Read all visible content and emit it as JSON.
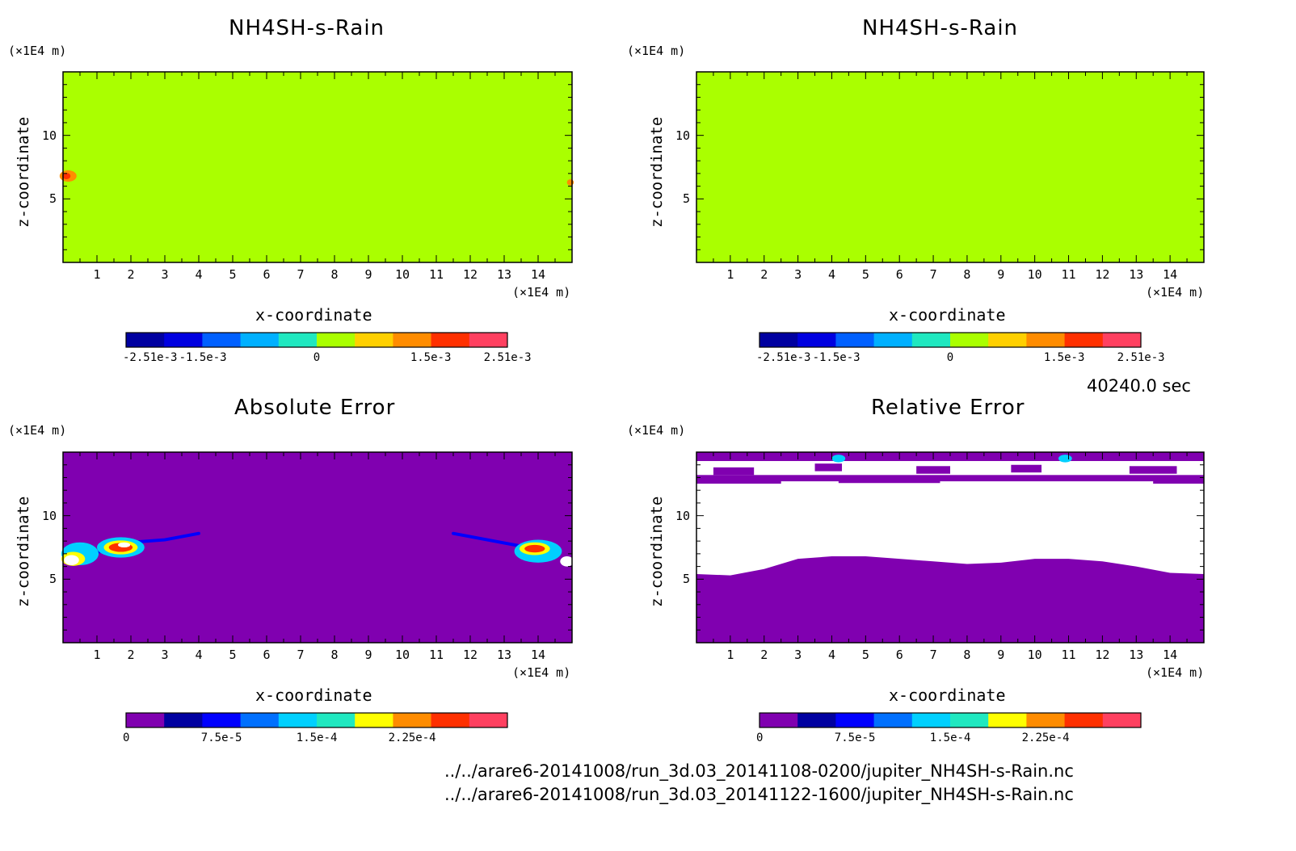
{
  "chart_data": [
    {
      "type": "heatmap",
      "title": "NH4SH-s-Rain",
      "xlabel": "x-coordinate",
      "ylabel": "z-coordinate",
      "x_unit": "(×1E4 m)",
      "y_unit": "(×1E4 m)",
      "xlim": [
        0,
        15
      ],
      "ylim": [
        0,
        15
      ],
      "x_ticks": [
        "1",
        "2",
        "3",
        "4",
        "5",
        "6",
        "7",
        "8",
        "9",
        "10",
        "11",
        "12",
        "13",
        "14"
      ],
      "y_ticks": [
        "5",
        "10"
      ],
      "background": "#aaff00",
      "colorbar": {
        "ticks": [
          "-2.51e-3",
          "-1.5e-3",
          "0",
          "1.5e-3",
          "2.51e-3"
        ],
        "tick_values": [
          -0.00251,
          -0.0015,
          0,
          0.0015,
          0.00251
        ],
        "range": [
          -0.00251,
          0.00251
        ],
        "colors": [
          "#0000a0",
          "#0000e0",
          "#0060ff",
          "#00b0ff",
          "#20e8c0",
          "#aaff00",
          "#ffd000",
          "#ff8c00",
          "#ff3000",
          "#ff4060"
        ]
      },
      "features": [
        {
          "kind": "blob",
          "x": 0.15,
          "z": 6.8,
          "rx": 0.25,
          "rz": 0.45,
          "color": "#ff8c00"
        },
        {
          "kind": "blob",
          "x": 0.1,
          "z": 6.8,
          "rx": 0.12,
          "rz": 0.25,
          "color": "#ff3000"
        },
        {
          "kind": "blob",
          "x": 14.95,
          "z": 6.3,
          "rx": 0.1,
          "rz": 0.25,
          "color": "#ff8c00"
        }
      ]
    },
    {
      "type": "heatmap",
      "title": "NH4SH-s-Rain",
      "xlabel": "x-coordinate",
      "ylabel": "z-coordinate",
      "x_unit": "(×1E4 m)",
      "y_unit": "(×1E4 m)",
      "xlim": [
        0,
        15
      ],
      "ylim": [
        0,
        15
      ],
      "x_ticks": [
        "1",
        "2",
        "3",
        "4",
        "5",
        "6",
        "7",
        "8",
        "9",
        "10",
        "11",
        "12",
        "13",
        "14"
      ],
      "y_ticks": [
        "5",
        "10"
      ],
      "background": "#aaff00",
      "colorbar": {
        "ticks": [
          "-2.51e-3",
          "-1.5e-3",
          "0",
          "1.5e-3",
          "2.51e-3"
        ],
        "tick_values": [
          -0.00251,
          -0.0015,
          0,
          0.0015,
          0.00251
        ],
        "range": [
          -0.00251,
          0.00251
        ],
        "colors": [
          "#0000a0",
          "#0000e0",
          "#0060ff",
          "#00b0ff",
          "#20e8c0",
          "#aaff00",
          "#ffd000",
          "#ff8c00",
          "#ff3000",
          "#ff4060"
        ]
      },
      "features": []
    },
    {
      "type": "heatmap",
      "title": "Absolute Error",
      "xlabel": "x-coordinate",
      "ylabel": "z-coordinate",
      "x_unit": "(×1E4 m)",
      "y_unit": "(×1E4 m)",
      "xlim": [
        0,
        15
      ],
      "ylim": [
        0,
        15
      ],
      "x_ticks": [
        "1",
        "2",
        "3",
        "4",
        "5",
        "6",
        "7",
        "8",
        "9",
        "10",
        "11",
        "12",
        "13",
        "14"
      ],
      "y_ticks": [
        "5",
        "10"
      ],
      "background": "#8000b0",
      "colorbar": {
        "ticks": [
          "0",
          "7.5e-5",
          "1.5e-4",
          "2.25e-4"
        ],
        "tick_values": [
          0,
          7.5e-05,
          0.00015,
          0.000225
        ],
        "range": [
          0,
          0.0003
        ],
        "colors": [
          "#8000b0",
          "#0000a0",
          "#0000ff",
          "#0070ff",
          "#00d0ff",
          "#20e8c0",
          "#ffff00",
          "#ff8c00",
          "#ff3000",
          "#ff4060"
        ]
      },
      "features": [
        {
          "kind": "streak",
          "points": [
            [
              1.0,
              7.1
            ],
            [
              2.0,
              7.9
            ],
            [
              3.0,
              8.1
            ],
            [
              4.0,
              8.6
            ]
          ],
          "width": 0.25,
          "color": "#0000ff"
        },
        {
          "kind": "blob",
          "x": 0.5,
          "z": 7.0,
          "rx": 0.55,
          "rz": 0.9,
          "color": "#00d0ff"
        },
        {
          "kind": "blob",
          "x": 0.3,
          "z": 6.6,
          "rx": 0.35,
          "rz": 0.55,
          "color": "#ffff00"
        },
        {
          "kind": "blob",
          "x": 0.25,
          "z": 6.5,
          "rx": 0.22,
          "rz": 0.4,
          "color": "#ffffff"
        },
        {
          "kind": "blob",
          "x": 1.7,
          "z": 7.5,
          "rx": 0.7,
          "rz": 0.8,
          "color": "#00d0ff"
        },
        {
          "kind": "blob",
          "x": 1.7,
          "z": 7.5,
          "rx": 0.5,
          "rz": 0.55,
          "color": "#ffff00"
        },
        {
          "kind": "blob",
          "x": 1.7,
          "z": 7.5,
          "rx": 0.35,
          "rz": 0.35,
          "color": "#ff3000"
        },
        {
          "kind": "blob",
          "x": 1.8,
          "z": 7.7,
          "rx": 0.18,
          "rz": 0.2,
          "color": "#ffffff"
        },
        {
          "kind": "streak",
          "points": [
            [
              11.5,
              8.6
            ],
            [
              12.5,
              8.1
            ],
            [
              13.5,
              7.6
            ]
          ],
          "width": 0.25,
          "color": "#0000ff"
        },
        {
          "kind": "blob",
          "x": 14.0,
          "z": 7.2,
          "rx": 0.7,
          "rz": 0.9,
          "color": "#00d0ff"
        },
        {
          "kind": "blob",
          "x": 13.9,
          "z": 7.4,
          "rx": 0.45,
          "rz": 0.5,
          "color": "#ffff00"
        },
        {
          "kind": "blob",
          "x": 13.9,
          "z": 7.4,
          "rx": 0.3,
          "rz": 0.3,
          "color": "#ff3000"
        },
        {
          "kind": "blob",
          "x": 14.85,
          "z": 6.4,
          "rx": 0.2,
          "rz": 0.4,
          "color": "#ffffff"
        }
      ]
    },
    {
      "type": "heatmap",
      "title": "Relative Error",
      "xlabel": "x-coordinate",
      "ylabel": "z-coordinate",
      "x_unit": "(×1E4 m)",
      "y_unit": "(×1E4 m)",
      "xlim": [
        0,
        15
      ],
      "ylim": [
        0,
        15
      ],
      "x_ticks": [
        "1",
        "2",
        "3",
        "4",
        "5",
        "6",
        "7",
        "8",
        "9",
        "10",
        "11",
        "12",
        "13",
        "14"
      ],
      "y_ticks": [
        "5",
        "10"
      ],
      "background": "#8000b0",
      "colorbar": {
        "ticks": [
          "0",
          "7.5e-5",
          "1.5e-4",
          "2.25e-4"
        ],
        "tick_values": [
          0,
          7.5e-05,
          0.00015,
          0.000225
        ],
        "range": [
          0,
          0.0003
        ],
        "colors": [
          "#8000b0",
          "#0000a0",
          "#0000ff",
          "#0070ff",
          "#00d0ff",
          "#20e8c0",
          "#ffff00",
          "#ff8c00",
          "#ff3000",
          "#ff4060"
        ]
      },
      "white_region_lower_boundary": [
        [
          0,
          5.4
        ],
        [
          1,
          5.3
        ],
        [
          2,
          5.8
        ],
        [
          3,
          6.6
        ],
        [
          4,
          6.8
        ],
        [
          5,
          6.8
        ],
        [
          6,
          6.6
        ],
        [
          7,
          6.4
        ],
        [
          8,
          6.2
        ],
        [
          9,
          6.3
        ],
        [
          10,
          6.6
        ],
        [
          11,
          6.6
        ],
        [
          12,
          6.4
        ],
        [
          13,
          6.0
        ],
        [
          14,
          5.5
        ],
        [
          15,
          5.4
        ]
      ],
      "white_region_upper": 12.7,
      "features": [
        {
          "kind": "blob",
          "x": 4.2,
          "z": 14.5,
          "rx": 0.2,
          "rz": 0.3,
          "color": "#00d0ff"
        },
        {
          "kind": "blob",
          "x": 10.9,
          "z": 14.5,
          "rx": 0.2,
          "rz": 0.3,
          "color": "#00d0ff"
        }
      ]
    }
  ],
  "time_label": "40240.0 sec",
  "files": [
    "../../arare6-20141008/run_3d.03_20141108-0200/jupiter_NH4SH-s-Rain.nc",
    "../../arare6-20141008/run_3d.03_20141122-1600/jupiter_NH4SH-s-Rain.nc"
  ]
}
